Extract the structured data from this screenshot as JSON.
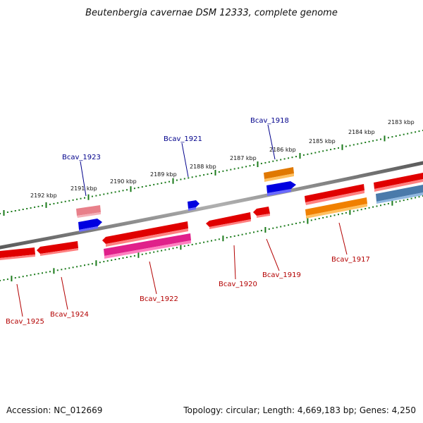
{
  "title": "Beutenbergia cavernae DSM 12333, complete genome",
  "footer": {
    "accession": "Accession: NC_012669",
    "topology": "Topology: circular; Length: 4,669,183 bp; Genes: 4,250"
  },
  "colors": {
    "backbone": "#808080",
    "scale_ticks": "#1a7a1a",
    "gene_label_top": "#00008b",
    "gene_label_bottom": "#b30000",
    "gene_red": "#e00000",
    "gene_pink": "#e8808a",
    "gene_blue": "#0000e0",
    "gene_orange": "#f08000",
    "gene_magenta": "#e0208a",
    "gene_steel": "#4a7aaa"
  },
  "scale_labels": [
    "2192 kbp",
    "2191 kbp",
    "2190 kbp",
    "2189 kbp",
    "2188 kbp",
    "2187 kbp",
    "2186 kbp",
    "2185 kbp",
    "2184 kbp",
    "2183 kbp"
  ],
  "genes_top": [
    {
      "label": "Bcav_1923"
    },
    {
      "label": "Bcav_1921"
    },
    {
      "label": "Bcav_1918"
    }
  ],
  "genes_bottom": [
    {
      "label": "Bcav_1925"
    },
    {
      "label": "Bcav_1924"
    },
    {
      "label": "Bcav_1922"
    },
    {
      "label": "Bcav_1920"
    },
    {
      "label": "Bcav_1919"
    },
    {
      "label": "Bcav_1917"
    }
  ]
}
